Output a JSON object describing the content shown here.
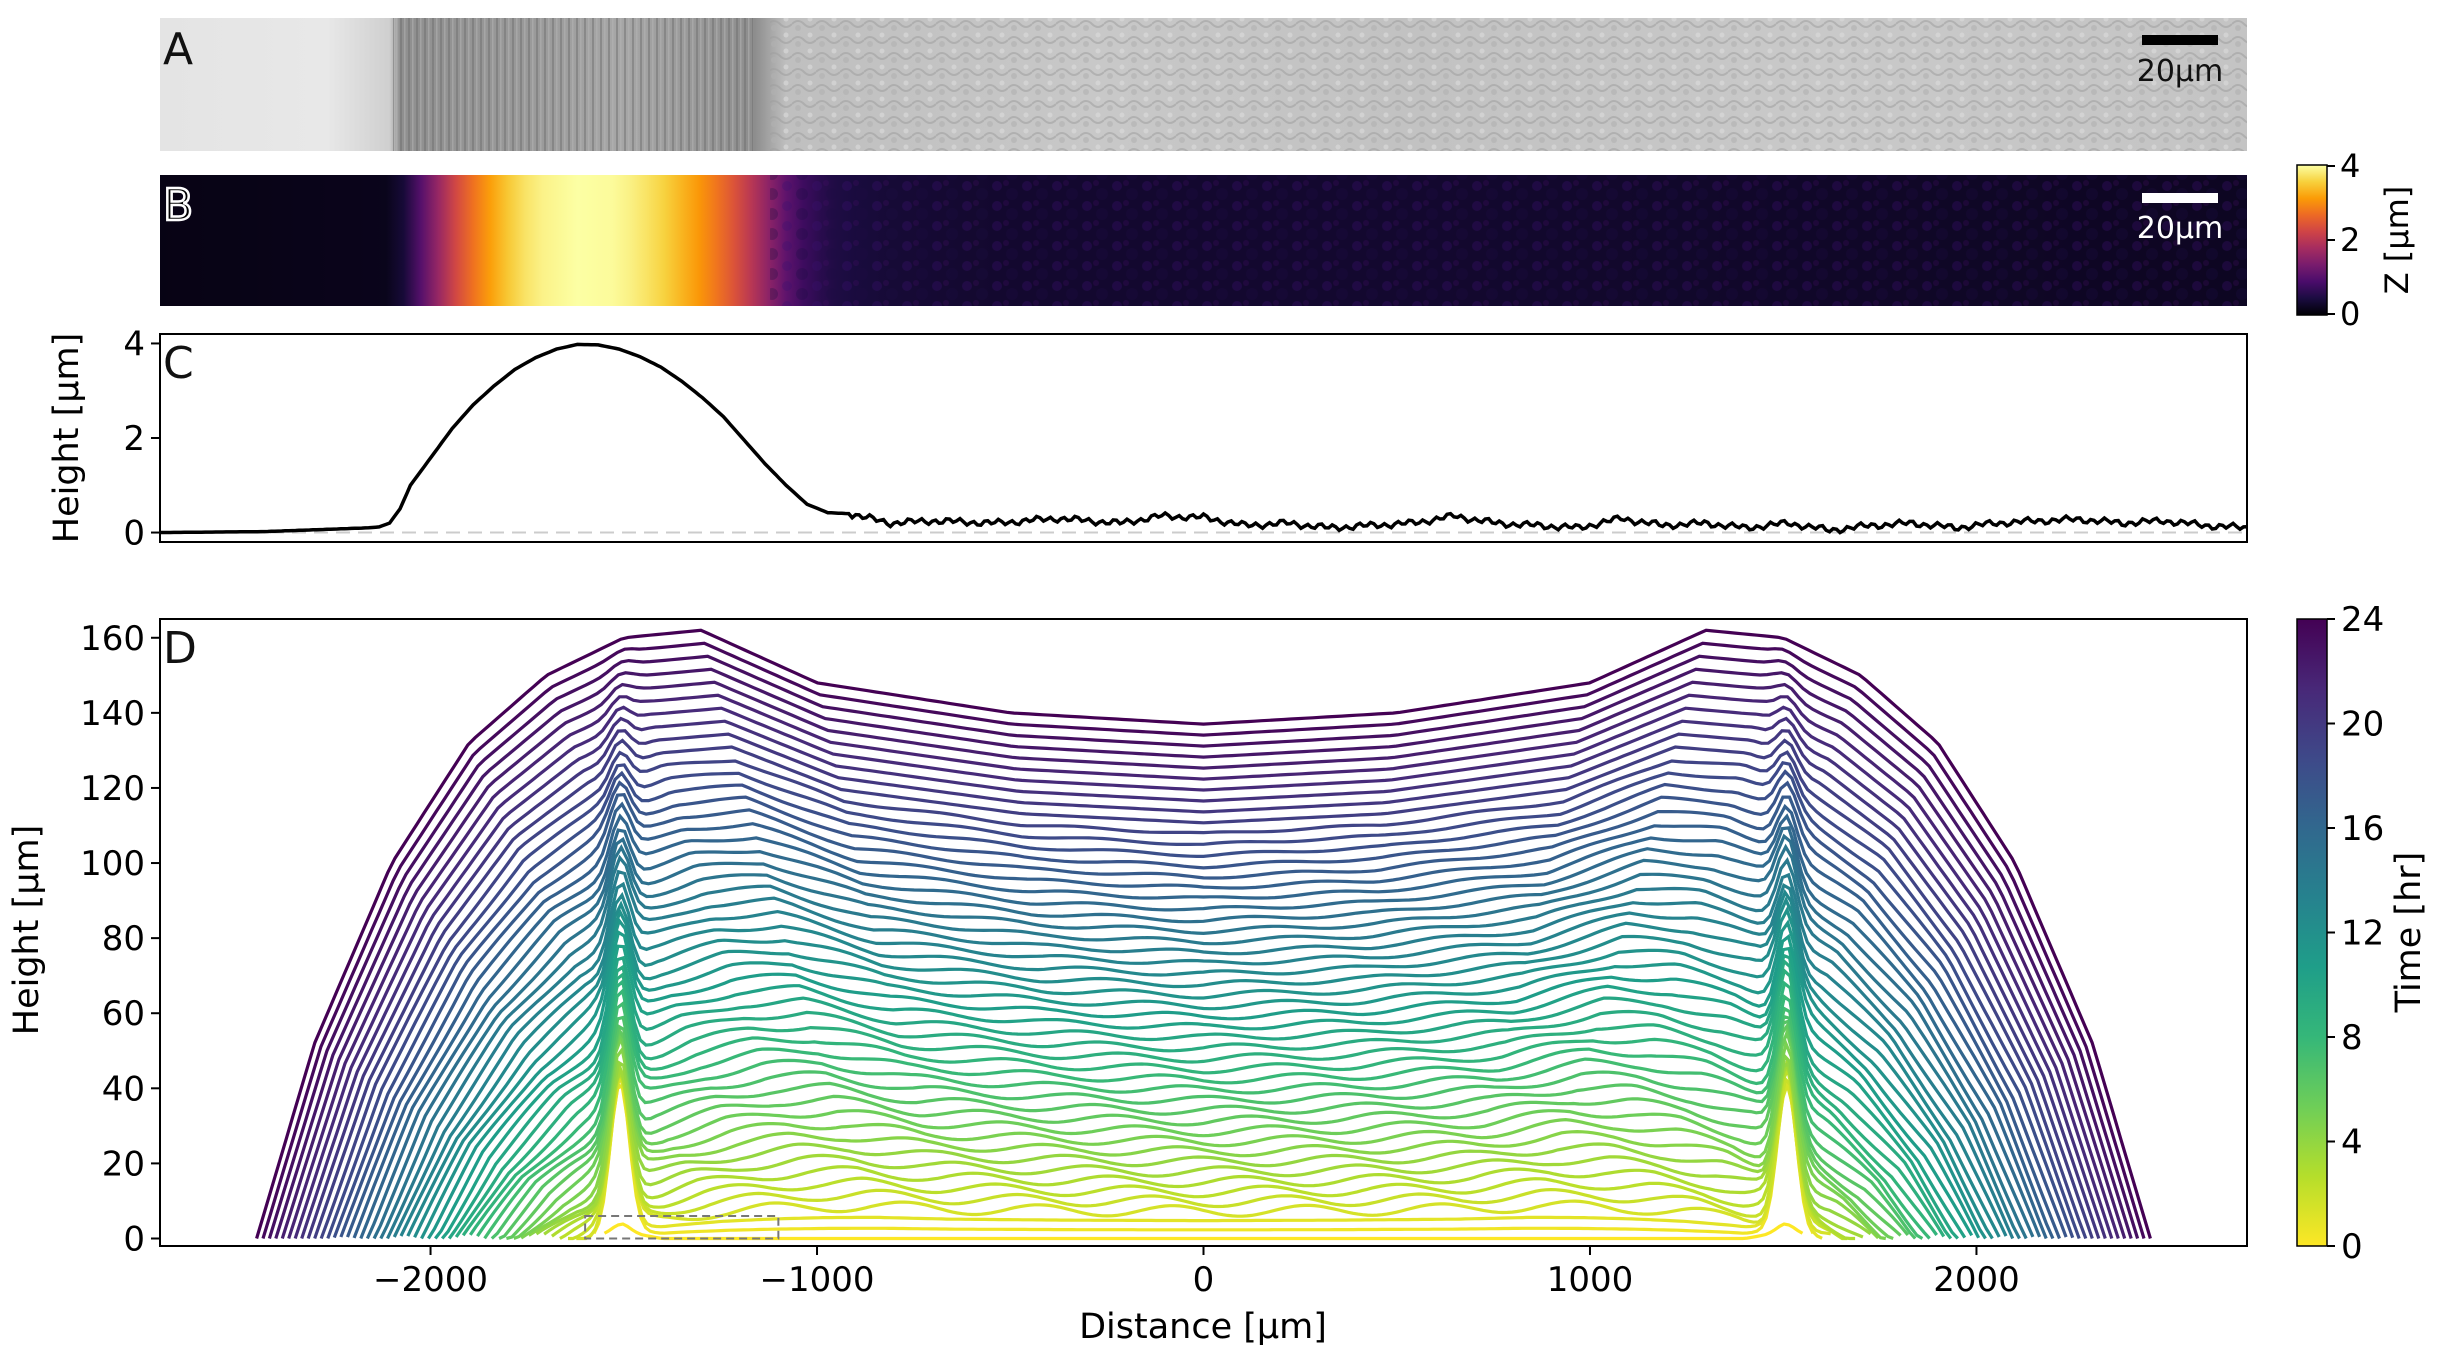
{
  "panels": {
    "a": {
      "letter": "A",
      "scalebar_label": "20μm",
      "colors": {
        "bar": "#000000",
        "label": "#111111"
      }
    },
    "b": {
      "letter": "B",
      "scalebar_label": "20μm",
      "colorbar": {
        "label": "Z [μm]",
        "ticks": [
          "0",
          "2",
          "4"
        ],
        "colormap": "inferno",
        "range": [
          0,
          4
        ]
      }
    },
    "c": {
      "letter": "C",
      "ylabel": "Height [μm]",
      "yticks": [
        "0",
        "2",
        "4"
      ]
    },
    "d": {
      "letter": "D",
      "ylabel": "Height [μm]",
      "xlabel": "Distance [μm]",
      "yticks": [
        "0",
        "20",
        "40",
        "60",
        "80",
        "100",
        "120",
        "140",
        "160"
      ],
      "xticks": [
        "−2000",
        "−1000",
        "0",
        "1000",
        "2000"
      ],
      "colorbar": {
        "label": "Time [hr]",
        "ticks": [
          "0",
          "4",
          "8",
          "12",
          "16",
          "20",
          "24"
        ],
        "colormap": "viridis",
        "range": [
          0,
          24
        ]
      }
    }
  },
  "chart_data": [
    {
      "panel": "A",
      "type": "image",
      "description_visible": "grayscale micrograph strip"
    },
    {
      "panel": "B",
      "type": "heatmap",
      "colormap": "inferno",
      "zlim": [
        0,
        4
      ],
      "profile_x_fraction": [
        0.0,
        0.11,
        0.115,
        0.12,
        0.13,
        0.14,
        0.15,
        0.16,
        0.17,
        0.18,
        0.2,
        0.22,
        0.24,
        0.26,
        0.27,
        0.28,
        0.29,
        0.3,
        0.31,
        0.32,
        0.33,
        0.35,
        0.4,
        0.6,
        0.8,
        1.0
      ],
      "profile_z": [
        0.0,
        0.05,
        0.15,
        0.5,
        1.3,
        2.1,
        2.7,
        3.2,
        3.6,
        3.85,
        4.0,
        3.95,
        3.6,
        3.0,
        2.6,
        2.1,
        1.55,
        1.0,
        0.6,
        0.4,
        0.32,
        0.25,
        0.2,
        0.2,
        0.15,
        0.1
      ]
    },
    {
      "panel": "C",
      "type": "line",
      "ylim": [
        -0.2,
        4.2
      ],
      "x_fraction": [
        0.0,
        0.05,
        0.1,
        0.105,
        0.11,
        0.115,
        0.12,
        0.13,
        0.14,
        0.15,
        0.16,
        0.17,
        0.18,
        0.19,
        0.2,
        0.21,
        0.22,
        0.23,
        0.24,
        0.25,
        0.26,
        0.27,
        0.28,
        0.29,
        0.3,
        0.305,
        0.31,
        0.32,
        0.33,
        0.34,
        0.35,
        0.37,
        0.4,
        0.43,
        0.46,
        0.48,
        0.5,
        0.52,
        0.54,
        0.56,
        0.58,
        0.6,
        0.62,
        0.64,
        0.66,
        0.68,
        0.7,
        0.72,
        0.74,
        0.76,
        0.78,
        0.8,
        0.82,
        0.84,
        0.86,
        0.88,
        0.9,
        0.92,
        0.94,
        0.96,
        0.98,
        1.0
      ],
      "height": [
        0.0,
        0.02,
        0.1,
        0.12,
        0.2,
        0.5,
        1.0,
        1.6,
        2.2,
        2.7,
        3.1,
        3.45,
        3.7,
        3.88,
        3.98,
        3.97,
        3.88,
        3.72,
        3.5,
        3.2,
        2.85,
        2.45,
        1.95,
        1.45,
        1.0,
        0.8,
        0.6,
        0.42,
        0.4,
        0.3,
        0.2,
        0.25,
        0.2,
        0.3,
        0.2,
        0.35,
        0.32,
        0.15,
        0.2,
        0.1,
        0.15,
        0.2,
        0.35,
        0.2,
        0.15,
        0.1,
        0.3,
        0.15,
        0.2,
        0.1,
        0.2,
        0.05,
        0.15,
        0.2,
        0.1,
        0.2,
        0.25,
        0.28,
        0.2,
        0.25,
        0.15,
        0.1
      ]
    },
    {
      "panel": "D",
      "type": "line",
      "xlim": [
        -2700,
        2700
      ],
      "ylim": [
        -2,
        165
      ],
      "color_by": "time_hr",
      "time_range": [
        0,
        24
      ],
      "n_profiles": 50,
      "outer_profile_t24": {
        "x": [
          -2450,
          -2300,
          -2100,
          -1900,
          -1700,
          -1500,
          -1300,
          -1000,
          -500,
          0,
          500,
          1000,
          1300,
          1500,
          1700,
          1900,
          2100,
          2300,
          2450
        ],
        "y": [
          0,
          52,
          100,
          132,
          150,
          160,
          162,
          148,
          140,
          137,
          140,
          148,
          162,
          160,
          150,
          132,
          100,
          52,
          0
        ]
      },
      "initial_profile_t0": {
        "x": [
          -2000,
          -1600,
          -1540,
          -1500,
          -1460,
          -1400,
          -1000,
          0,
          1000,
          1400,
          1460,
          1500,
          1540,
          1600,
          2000
        ],
        "y": [
          0,
          0,
          1,
          2,
          1,
          0,
          0,
          0,
          0,
          0,
          1,
          2,
          1,
          0,
          0
        ]
      },
      "annotation": {
        "type": "dashed_box",
        "x": [
          -1600,
          -1100
        ],
        "y": [
          0,
          6
        ]
      }
    }
  ]
}
